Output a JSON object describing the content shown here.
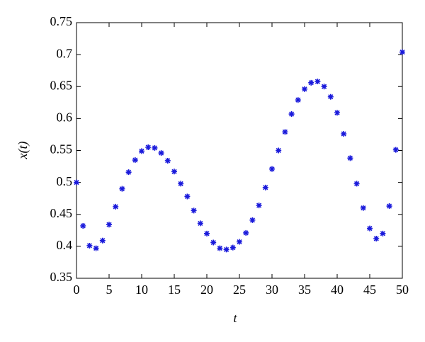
{
  "chart_data": {
    "type": "scatter",
    "x_label": "t",
    "y_label": "x(t)",
    "x": [
      0,
      1,
      2,
      3,
      4,
      5,
      6,
      7,
      8,
      9,
      10,
      11,
      12,
      13,
      14,
      15,
      16,
      17,
      18,
      19,
      20,
      21,
      22,
      23,
      24,
      25,
      26,
      27,
      28,
      29,
      30,
      31,
      32,
      33,
      34,
      35,
      36,
      37,
      38,
      39,
      40,
      41,
      42,
      43,
      44,
      45,
      46,
      47,
      48,
      49,
      50
    ],
    "values": [
      0.5,
      0.432,
      0.401,
      0.397,
      0.409,
      0.434,
      0.462,
      0.49,
      0.516,
      0.535,
      0.549,
      0.555,
      0.554,
      0.546,
      0.534,
      0.517,
      0.498,
      0.478,
      0.456,
      0.436,
      0.42,
      0.406,
      0.397,
      0.395,
      0.398,
      0.407,
      0.421,
      0.441,
      0.464,
      0.492,
      0.521,
      0.55,
      0.579,
      0.607,
      0.629,
      0.646,
      0.656,
      0.658,
      0.65,
      0.634,
      0.609,
      0.576,
      0.538,
      0.498,
      0.46,
      0.428,
      0.412,
      0.42,
      0.463,
      0.551,
      0.704
    ],
    "color": "#1a1adb",
    "xlim": [
      0,
      50
    ],
    "xticks": [
      0,
      5,
      10,
      15,
      20,
      25,
      30,
      35,
      40,
      45,
      50
    ],
    "ylim": [
      0.35,
      0.75
    ],
    "yticks": [
      0.35,
      0.4,
      0.45,
      0.5,
      0.55,
      0.6,
      0.65,
      0.7,
      0.75
    ]
  }
}
